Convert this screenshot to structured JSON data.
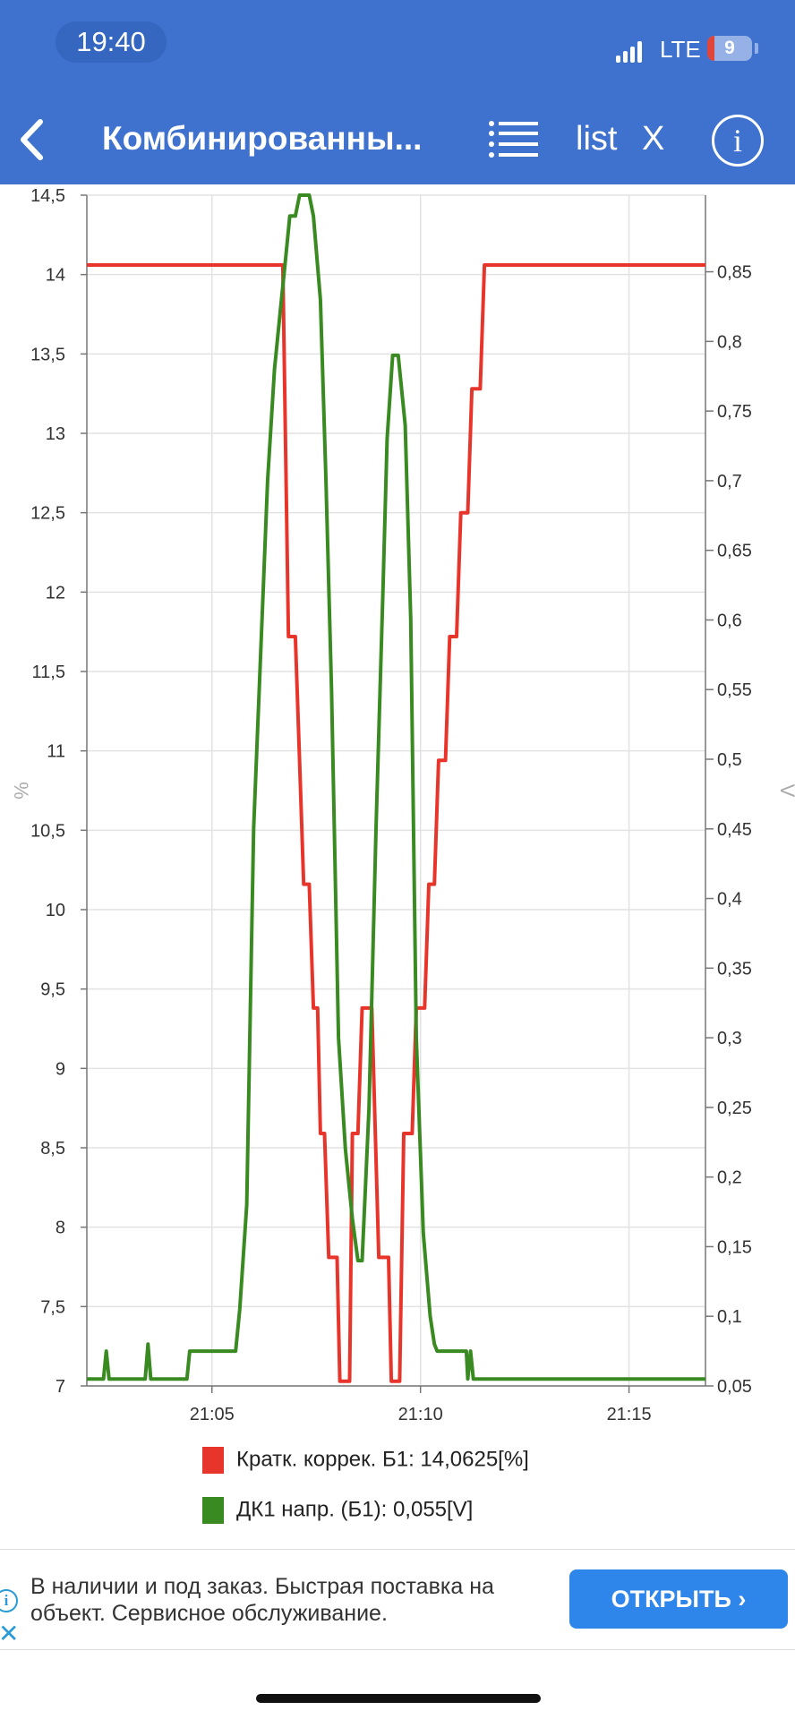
{
  "status_bar": {
    "time": "19:40",
    "network": "LTE",
    "battery": "9"
  },
  "header": {
    "title": "Комбинированны...",
    "list_label": "list",
    "close_label": "X",
    "info_label": "i",
    "icons": [
      "back-chevron-icon",
      "list-icon",
      "info-icon"
    ]
  },
  "chart_data": {
    "type": "line",
    "x_ticks": [
      "21:05",
      "21:10",
      "21:15"
    ],
    "x_range": [
      "21:02:00",
      "21:16:50"
    ],
    "y_left": {
      "label": "%",
      "range": [
        7,
        14.5
      ],
      "ticks": [
        "7",
        "7,5",
        "8",
        "8,5",
        "9",
        "9,5",
        "10",
        "10,5",
        "11",
        "11,5",
        "12",
        "12,5",
        "13",
        "13,5",
        "14",
        "14,5"
      ]
    },
    "y_right": {
      "label": "V",
      "range": [
        0.05,
        0.905
      ],
      "ticks": [
        "0,05",
        "0,1",
        "0,15",
        "0,2",
        "0,25",
        "0,3",
        "0,35",
        "0,4",
        "0,45",
        "0,5",
        "0,55",
        "0,6",
        "0,65",
        "0,7",
        "0,75",
        "0,8",
        "0,85"
      ]
    },
    "grid": true,
    "legend_position": "bottom",
    "series": [
      {
        "name": "Кратк. коррек. Б1: 14,0625[%]",
        "axis": "left",
        "color": "#e8352b",
        "points": [
          [
            "21:02:00",
            14.06
          ],
          [
            "21:06:42",
            14.06
          ],
          [
            "21:06:50",
            11.72
          ],
          [
            "21:07:00",
            11.72
          ],
          [
            "21:07:06",
            10.94
          ],
          [
            "21:07:12",
            10.16
          ],
          [
            "21:07:20",
            10.16
          ],
          [
            "21:07:26",
            9.38
          ],
          [
            "21:07:32",
            9.38
          ],
          [
            "21:07:36",
            8.59
          ],
          [
            "21:07:42",
            8.59
          ],
          [
            "21:07:48",
            7.81
          ],
          [
            "21:08:00",
            7.81
          ],
          [
            "21:08:04",
            7.03
          ],
          [
            "21:08:18",
            7.03
          ],
          [
            "21:08:22",
            8.59
          ],
          [
            "21:08:30",
            8.59
          ],
          [
            "21:08:36",
            9.38
          ],
          [
            "21:08:50",
            9.38
          ],
          [
            "21:09:00",
            7.81
          ],
          [
            "21:09:14",
            7.81
          ],
          [
            "21:09:18",
            7.03
          ],
          [
            "21:09:30",
            7.03
          ],
          [
            "21:09:36",
            8.59
          ],
          [
            "21:09:48",
            8.59
          ],
          [
            "21:09:54",
            9.38
          ],
          [
            "21:10:06",
            9.38
          ],
          [
            "21:10:12",
            10.16
          ],
          [
            "21:10:20",
            10.16
          ],
          [
            "21:10:26",
            10.94
          ],
          [
            "21:10:36",
            10.94
          ],
          [
            "21:10:42",
            11.72
          ],
          [
            "21:10:52",
            11.72
          ],
          [
            "21:10:58",
            12.5
          ],
          [
            "21:11:08",
            12.5
          ],
          [
            "21:11:14",
            13.28
          ],
          [
            "21:11:26",
            13.28
          ],
          [
            "21:11:32",
            14.06
          ],
          [
            "21:16:50",
            14.06
          ]
        ]
      },
      {
        "name": "ДК1 напр. (Б1): 0,055[V]",
        "axis": "right",
        "color": "#3a8a22",
        "points": [
          [
            "21:02:00",
            0.055
          ],
          [
            "21:02:24",
            0.055
          ],
          [
            "21:02:28",
            0.075
          ],
          [
            "21:02:32",
            0.055
          ],
          [
            "21:03:24",
            0.055
          ],
          [
            "21:03:28",
            0.08
          ],
          [
            "21:03:32",
            0.055
          ],
          [
            "21:04:24",
            0.055
          ],
          [
            "21:04:28",
            0.075
          ],
          [
            "21:05:34",
            0.075
          ],
          [
            "21:05:40",
            0.105
          ],
          [
            "21:05:50",
            0.18
          ],
          [
            "21:06:00",
            0.45
          ],
          [
            "21:06:20",
            0.7
          ],
          [
            "21:06:30",
            0.78
          ],
          [
            "21:06:38",
            0.82
          ],
          [
            "21:06:46",
            0.86
          ],
          [
            "21:06:52",
            0.89
          ],
          [
            "21:07:00",
            0.89
          ],
          [
            "21:07:06",
            0.905
          ],
          [
            "21:07:20",
            0.905
          ],
          [
            "21:07:26",
            0.89
          ],
          [
            "21:07:36",
            0.83
          ],
          [
            "21:07:44",
            0.7
          ],
          [
            "21:07:52",
            0.55
          ],
          [
            "21:08:02",
            0.3
          ],
          [
            "21:08:12",
            0.22
          ],
          [
            "21:08:22",
            0.17
          ],
          [
            "21:08:30",
            0.14
          ],
          [
            "21:08:36",
            0.14
          ],
          [
            "21:08:46",
            0.25
          ],
          [
            "21:08:56",
            0.45
          ],
          [
            "21:09:06",
            0.62
          ],
          [
            "21:09:12",
            0.73
          ],
          [
            "21:09:20",
            0.79
          ],
          [
            "21:09:28",
            0.79
          ],
          [
            "21:09:38",
            0.74
          ],
          [
            "21:09:46",
            0.6
          ],
          [
            "21:09:54",
            0.3
          ],
          [
            "21:10:04",
            0.16
          ],
          [
            "21:10:14",
            0.1
          ],
          [
            "21:10:20",
            0.08
          ],
          [
            "21:10:24",
            0.075
          ],
          [
            "21:11:06",
            0.075
          ],
          [
            "21:11:08",
            0.055
          ],
          [
            "21:11:12",
            0.075
          ],
          [
            "21:11:16",
            0.055
          ],
          [
            "21:16:50",
            0.055
          ]
        ]
      }
    ]
  },
  "ad": {
    "text": "В наличии и под заказ. Быстрая поставка на объект. Сервисное обслуживание.",
    "button": "ОТКРЫТЬ"
  }
}
